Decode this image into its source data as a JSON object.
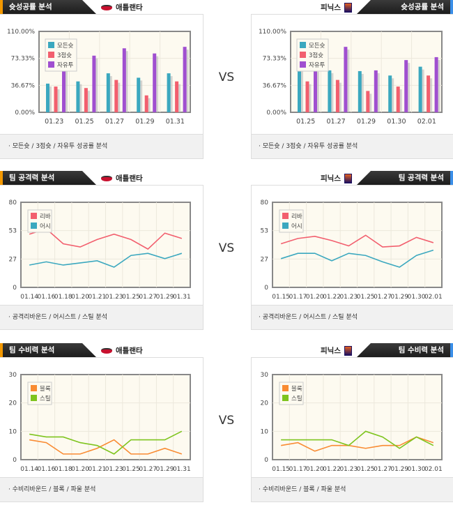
{
  "vs_label": "VS",
  "sections": [
    {
      "title": "슛성공률 분석",
      "footer": "· 모든슛 / 3점슛 / 자유투 성공률 분석",
      "left_team": "애틀랜타",
      "right_team": "피닉스"
    },
    {
      "title": "팀 공격력 분석",
      "footer": "· 공격리바운드 / 어시스트 / 스틸 분석",
      "left_team": "애틀랜타",
      "right_team": "피닉스"
    },
    {
      "title": "팀 수비력 분석",
      "footer": "· 수비리바운드 / 블록 / 파울 분석",
      "left_team": "애틀랜타",
      "right_team": "피닉스"
    }
  ],
  "chart_data": [
    {
      "type": "bar",
      "team": "애틀랜타",
      "categories": [
        "01.23",
        "01.25",
        "01.27",
        "01.29",
        "01.31"
      ],
      "ylim": [
        0,
        110
      ],
      "yticks": [
        "0.00%",
        "36.67%",
        "73.33%",
        "110.00%"
      ],
      "series": [
        {
          "name": "모든슛",
          "color": "#3ba8bf",
          "values": [
            39,
            42,
            53,
            47,
            53
          ]
        },
        {
          "name": "3점슛",
          "color": "#f25f6e",
          "values": [
            35,
            33,
            44,
            23,
            42
          ]
        },
        {
          "name": "자유투",
          "color": "#a04fd0",
          "values": [
            65,
            77,
            87,
            80,
            89
          ]
        }
      ]
    },
    {
      "type": "bar",
      "team": "피닉스",
      "categories": [
        "01.25",
        "01.27",
        "01.29",
        "01.30",
        "02.01"
      ],
      "ylim": [
        0,
        110
      ],
      "yticks": [
        "0.00%",
        "36.67%",
        "73.33%",
        "110.00%"
      ],
      "series": [
        {
          "name": "모든슛",
          "color": "#3ba8bf",
          "values": [
            60,
            57,
            56,
            50,
            62
          ]
        },
        {
          "name": "3점슛",
          "color": "#f25f6e",
          "values": [
            42,
            44,
            29,
            35,
            50
          ]
        },
        {
          "name": "자유투",
          "color": "#a04fd0",
          "values": [
            59,
            89,
            57,
            71,
            75
          ]
        }
      ]
    },
    {
      "type": "line",
      "team": "애틀랜타",
      "categories": [
        "01.14",
        "01.16",
        "01.18",
        "01.20",
        "01.21",
        "01.23",
        "01.25",
        "01.27",
        "01.29",
        "01.31"
      ],
      "ylim": [
        0,
        80
      ],
      "yticks": [
        "0",
        "27",
        "53",
        "80"
      ],
      "series": [
        {
          "name": "리바",
          "color": "#f25f6e",
          "values": [
            50,
            55,
            41,
            38,
            45,
            50,
            45,
            36,
            51,
            46
          ]
        },
        {
          "name": "어시",
          "color": "#3ba8bf",
          "values": [
            21,
            24,
            21,
            23,
            25,
            19,
            30,
            32,
            27,
            32
          ]
        }
      ]
    },
    {
      "type": "line",
      "team": "피닉스",
      "categories": [
        "01.15",
        "01.17",
        "01.20",
        "01.22",
        "01.23",
        "01.25",
        "01.27",
        "01.29",
        "01.30",
        "02.01"
      ],
      "ylim": [
        0,
        80
      ],
      "yticks": [
        "0",
        "27",
        "53",
        "80"
      ],
      "series": [
        {
          "name": "리바",
          "color": "#f25f6e",
          "values": [
            41,
            46,
            48,
            44,
            39,
            49,
            38,
            39,
            47,
            42
          ]
        },
        {
          "name": "어시",
          "color": "#3ba8bf",
          "values": [
            27,
            32,
            32,
            25,
            32,
            30,
            24,
            19,
            30,
            35
          ]
        }
      ]
    },
    {
      "type": "line",
      "team": "애틀랜타",
      "categories": [
        "01.14",
        "01.16",
        "01.18",
        "01.20",
        "01.21",
        "01.23",
        "01.25",
        "01.27",
        "01.29",
        "01.31"
      ],
      "ylim": [
        0,
        30
      ],
      "yticks": [
        "0",
        "10",
        "20",
        "30"
      ],
      "series": [
        {
          "name": "블록",
          "color": "#f98b32",
          "values": [
            7,
            6,
            2,
            2,
            4,
            7,
            2,
            2,
            4,
            2
          ]
        },
        {
          "name": "스틸",
          "color": "#7ec41e",
          "values": [
            9,
            8,
            8,
            6,
            5,
            2,
            7,
            7,
            7,
            10
          ]
        }
      ]
    },
    {
      "type": "line",
      "team": "피닉스",
      "categories": [
        "01.15",
        "01.17",
        "01.20",
        "01.22",
        "01.23",
        "01.25",
        "01.27",
        "01.29",
        "01.30",
        "02.01"
      ],
      "ylim": [
        0,
        30
      ],
      "yticks": [
        "0",
        "10",
        "20",
        "30"
      ],
      "series": [
        {
          "name": "블록",
          "color": "#f98b32",
          "values": [
            5,
            6,
            3,
            5,
            5,
            4,
            5,
            5,
            8,
            6
          ]
        },
        {
          "name": "스틸",
          "color": "#7ec41e",
          "values": [
            7,
            7,
            7,
            7,
            5,
            10,
            8,
            4,
            8,
            5
          ]
        }
      ]
    }
  ]
}
